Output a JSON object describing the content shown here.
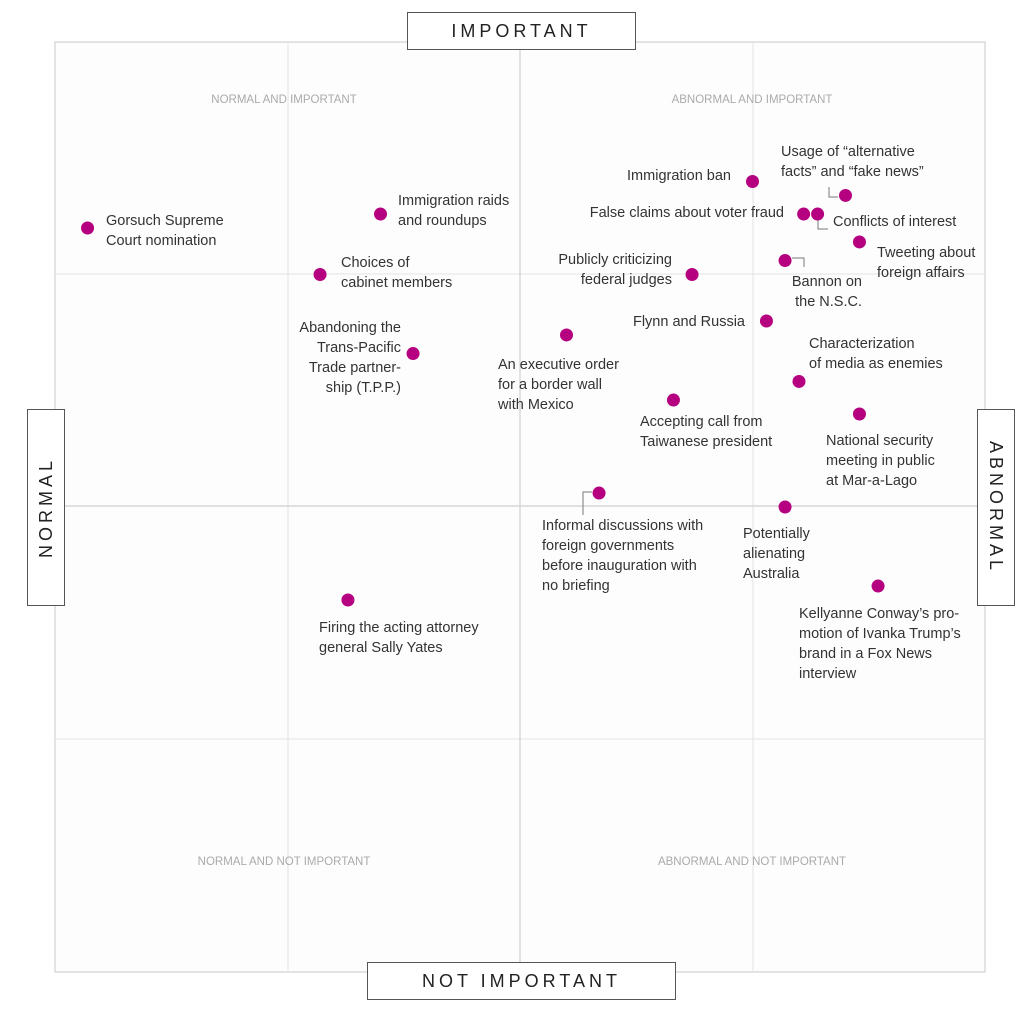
{
  "chart_data": {
    "type": "scatter",
    "title": "",
    "xlabel_left": "NORMAL",
    "xlabel_right": "ABNORMAL",
    "ylabel_top": "IMPORTANT",
    "ylabel_bottom": "NOT IMPORTANT",
    "xlim": [
      -1,
      1
    ],
    "ylim": [
      -1,
      1
    ],
    "grid": true,
    "quadrant_labels": {
      "top_left": "NORMAL AND IMPORTANT",
      "top_right": "ABNORMAL AND IMPORTANT",
      "bottom_left": "NORMAL AND NOT IMPORTANT",
      "bottom_right": "ABNORMAL AND NOT IMPORTANT"
    },
    "point_color": "#b5007f",
    "points": [
      {
        "label": [
          "Gorsuch Supreme",
          "Court nomination"
        ],
        "x": -0.93,
        "y": 0.6
      },
      {
        "label": [
          "Immigration raids",
          "and roundups"
        ],
        "x": -0.3,
        "y": 0.63
      },
      {
        "label": [
          "Choices of",
          "cabinet members"
        ],
        "x": -0.43,
        "y": 0.5
      },
      {
        "label": [
          "Abandoning the",
          "Trans-Pacific",
          "Trade partner-",
          "ship (T.P.P.)"
        ],
        "x": -0.23,
        "y": 0.33
      },
      {
        "label": [
          "An executive order",
          "for a border wall",
          "with Mexico"
        ],
        "x": 0.1,
        "y": 0.37
      },
      {
        "label": [
          "Immigration ban"
        ],
        "x": 0.5,
        "y": 0.7
      },
      {
        "label": [
          "Usage of “alternative",
          "facts” and “fake news”"
        ],
        "x": 0.7,
        "y": 0.67
      },
      {
        "label": [
          "False claims about voter fraud"
        ],
        "x": 0.61,
        "y": 0.63
      },
      {
        "label": [
          "Conflicts of interest"
        ],
        "x": 0.64,
        "y": 0.63
      },
      {
        "label": [
          "Tweeting about",
          "foreign affairs"
        ],
        "x": 0.73,
        "y": 0.57
      },
      {
        "label": [
          "Publicly criticizing",
          "federal judges"
        ],
        "x": 0.37,
        "y": 0.5
      },
      {
        "label": [
          "Bannon on",
          "the N.S.C."
        ],
        "x": 0.57,
        "y": 0.53
      },
      {
        "label": [
          "Flynn and Russia"
        ],
        "x": 0.53,
        "y": 0.4
      },
      {
        "label": [
          "Characterization",
          "of media as enemies"
        ],
        "x": 0.6,
        "y": 0.27
      },
      {
        "label": [
          "Accepting call from",
          "Taiwanese president"
        ],
        "x": 0.33,
        "y": 0.23
      },
      {
        "label": [
          "National security",
          "meeting in public",
          "at Mar-a-Lago"
        ],
        "x": 0.73,
        "y": 0.2
      },
      {
        "label": [
          "Informal discussions with",
          "foreign governments",
          "before inauguration with",
          "no briefing"
        ],
        "x": 0.17,
        "y": 0.03
      },
      {
        "label": [
          "Potentially",
          "alienating",
          "Australia"
        ],
        "x": 0.57,
        "y": 0.0
      },
      {
        "label": [
          "Kellyanne Conway’s pro-",
          "motion of Ivanka Trump’s",
          "brand in a Fox News",
          "interview"
        ],
        "x": 0.77,
        "y": -0.17
      },
      {
        "label": [
          "Firing the acting attorney",
          "general Sally Yates"
        ],
        "x": -0.37,
        "y": -0.2
      }
    ]
  }
}
